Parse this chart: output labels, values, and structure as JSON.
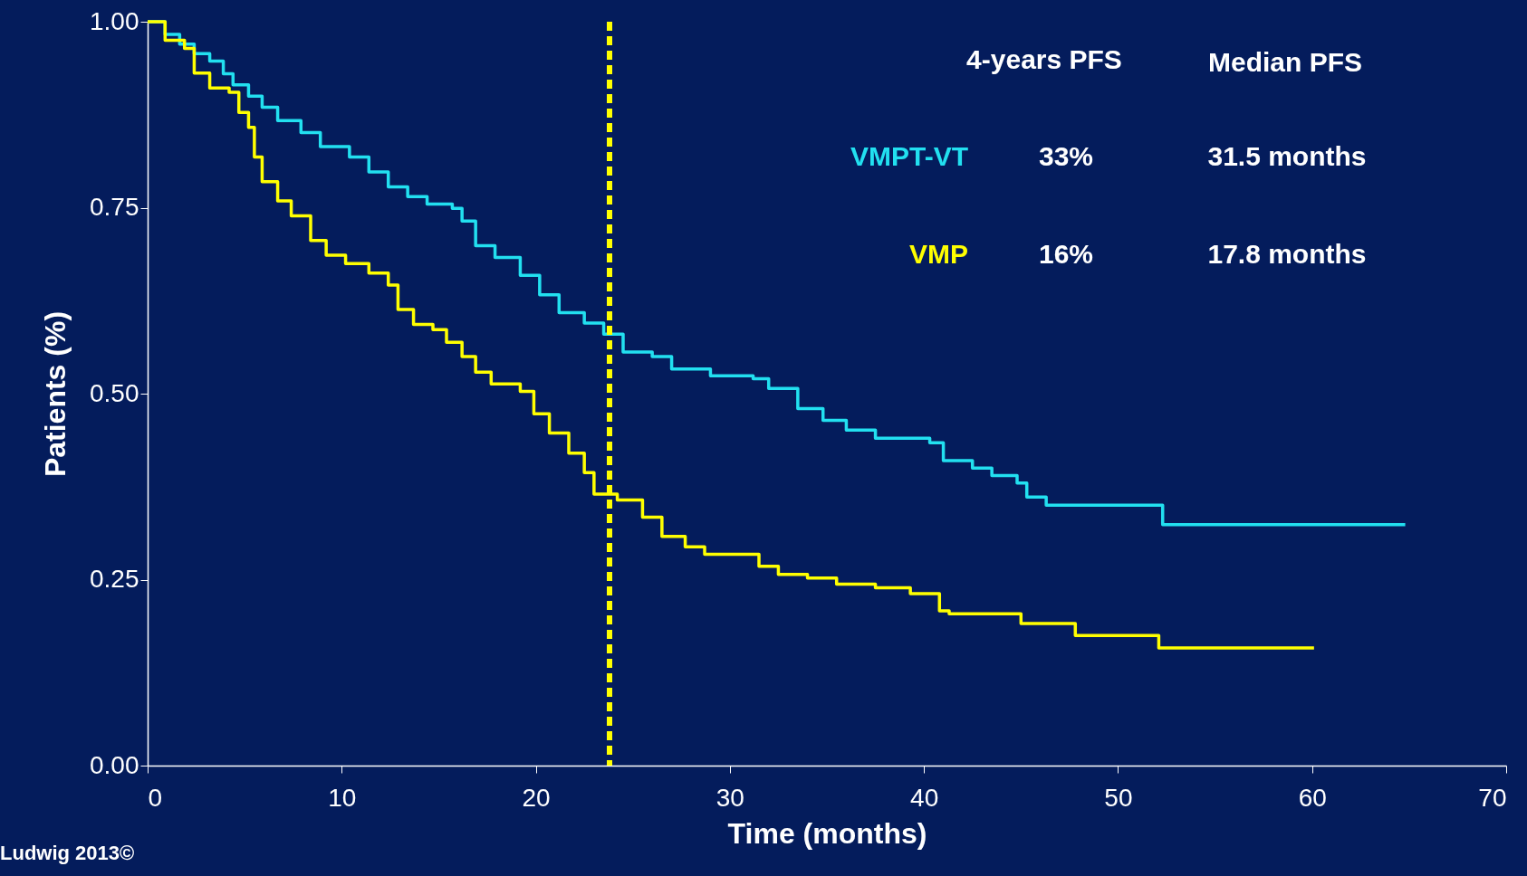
{
  "chart_data": {
    "type": "step",
    "xlabel": "Time (months)",
    "ylabel": "Patients (%)",
    "xlim": [
      0,
      70
    ],
    "xticks": [
      0,
      10,
      20,
      30,
      40,
      50,
      60,
      70
    ],
    "ylim": [
      0,
      1
    ],
    "yticks": [
      {
        "value": 0,
        "label": "0.00"
      },
      {
        "value": 0.25,
        "label": "0.25"
      },
      {
        "value": 0.5,
        "label": "0.50"
      },
      {
        "value": 0.75,
        "label": "0.75"
      },
      {
        "value": 1,
        "label": "1.00"
      }
    ],
    "grid": false,
    "line_style": "solid",
    "marker": "none",
    "series": [
      {
        "name": "VMPT-VT",
        "color": "#22e0f0",
        "x": [
          0,
          0.9,
          1.65,
          2.4,
          3.2,
          3.9,
          4.4,
          5.2,
          5.9,
          6.7,
          7.9,
          8.9,
          10.4,
          11.4,
          12.4,
          13.4,
          14.4,
          15.7,
          16.2,
          16.9,
          17.9,
          19.2,
          20.2,
          21.2,
          22.5,
          23.5,
          24.5,
          26.0,
          27.0,
          29.0,
          31.2,
          32.0,
          33.5,
          34.8,
          36.0,
          37.5,
          40.3,
          41.0,
          42.5,
          43.5,
          44.8,
          45.3,
          46.3,
          52.1,
          52.3,
          64.8
        ],
        "values": [
          1.0,
          0.983,
          0.97,
          0.957,
          0.947,
          0.93,
          0.915,
          0.9,
          0.885,
          0.867,
          0.851,
          0.832,
          0.818,
          0.798,
          0.778,
          0.765,
          0.755,
          0.749,
          0.732,
          0.699,
          0.683,
          0.659,
          0.633,
          0.609,
          0.595,
          0.58,
          0.556,
          0.55,
          0.533,
          0.524,
          0.52,
          0.507,
          0.48,
          0.464,
          0.451,
          0.44,
          0.434,
          0.41,
          0.4,
          0.39,
          0.38,
          0.361,
          0.35,
          0.35,
          0.324,
          0.324
        ]
      },
      {
        "name": "VMP",
        "color": "#ffff00",
        "x": [
          0,
          0.9,
          1.9,
          2.4,
          3.2,
          4.2,
          4.7,
          5.2,
          5.5,
          5.9,
          6.7,
          7.4,
          8.4,
          9.2,
          10.2,
          11.4,
          12.4,
          12.9,
          13.7,
          14.7,
          15.4,
          16.2,
          16.9,
          17.7,
          19.2,
          19.9,
          20.7,
          21.7,
          22.5,
          23.0,
          24.2,
          25.5,
          26.5,
          27.7,
          28.7,
          31.5,
          32.5,
          34.0,
          35.5,
          37.5,
          39.3,
          40.8,
          41.3,
          45.0,
          47.8,
          52.1,
          60.1
        ],
        "values": [
          1.0,
          0.975,
          0.964,
          0.931,
          0.911,
          0.905,
          0.878,
          0.858,
          0.818,
          0.785,
          0.759,
          0.739,
          0.706,
          0.686,
          0.675,
          0.662,
          0.646,
          0.613,
          0.593,
          0.586,
          0.569,
          0.55,
          0.529,
          0.513,
          0.503,
          0.473,
          0.447,
          0.42,
          0.394,
          0.365,
          0.357,
          0.334,
          0.308,
          0.294,
          0.284,
          0.268,
          0.257,
          0.252,
          0.244,
          0.239,
          0.231,
          0.208,
          0.204,
          0.191,
          0.175,
          0.158,
          0.158
        ]
      }
    ],
    "ref_lines": [
      {
        "axis": "x",
        "value": 23.8,
        "color": "#ffff00",
        "line_style": "dashed"
      }
    ],
    "annotations": [
      "4-years PFS",
      "Median PFS",
      "33%",
      "31.5 months",
      "16%",
      "17.8 months",
      "Ludwig 2013©"
    ]
  }
}
